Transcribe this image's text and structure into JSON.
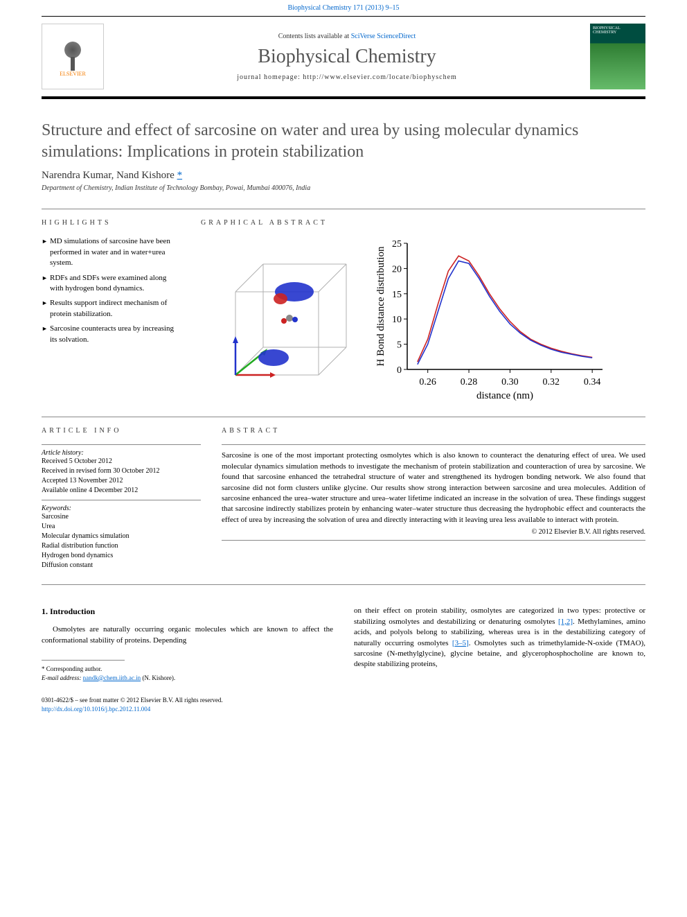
{
  "header": {
    "citation": "Biophysical Chemistry 171 (2013) 9–15",
    "contents_prefix": "Contents lists available at ",
    "contents_link": "SciVerse ScienceDirect",
    "journal_title": "Biophysical Chemistry",
    "homepage_prefix": "journal homepage: ",
    "homepage_url": "http://www.elsevier.com/locate/biophyschem",
    "elsevier_label": "ELSEVIER",
    "cover_label": "BIOPHYSICAL CHEMISTRY"
  },
  "article": {
    "title": "Structure and effect of sarcosine on water and urea by using molecular dynamics simulations: Implications in protein stabilization",
    "authors": "Narendra Kumar, Nand Kishore ",
    "corr_marker": "*",
    "affiliation": "Department of Chemistry, Indian Institute of Technology Bombay, Powai, Mumbai 400076, India"
  },
  "highlights": {
    "label": "HIGHLIGHTS",
    "items": [
      "MD simulations of sarcosine have been performed in water and in water+urea system.",
      "RDFs and SDFs were examined along with hydrogen bond dynamics.",
      "Results support indirect mechanism of protein stabilization.",
      "Sarcosine counteracts urea by increasing its solvation."
    ]
  },
  "graphical_abstract": {
    "label": "GRAPHICAL ABSTRACT",
    "cube": {
      "edge_color": "#b0b0b0",
      "axis_x_color": "#cc2222",
      "axis_y_color": "#22aa22",
      "axis_z_color": "#2233cc",
      "blob_colors": [
        "#2233cc",
        "#cc2222"
      ],
      "atom_colors": [
        "#888888",
        "#cc2222",
        "#2233cc"
      ]
    },
    "chart": {
      "type": "line",
      "xlabel": "distance (nm)",
      "ylabel": "H Bond distance distribution",
      "xlim": [
        0.25,
        0.345
      ],
      "ylim": [
        0,
        25
      ],
      "xticks": [
        0.26,
        0.28,
        0.3,
        0.32,
        0.34
      ],
      "yticks": [
        0,
        5,
        10,
        15,
        20,
        25
      ],
      "axis_color": "#000000",
      "background": "#ffffff",
      "label_fontsize": 15,
      "tick_fontsize": 14,
      "line_width": 1.6,
      "series": [
        {
          "color": "#cc2222",
          "points": [
            [
              0.255,
              1.5
            ],
            [
              0.26,
              6
            ],
            [
              0.265,
              13
            ],
            [
              0.27,
              19.5
            ],
            [
              0.275,
              22.5
            ],
            [
              0.28,
              21.5
            ],
            [
              0.285,
              18.5
            ],
            [
              0.29,
              15
            ],
            [
              0.295,
              12
            ],
            [
              0.3,
              9.5
            ],
            [
              0.305,
              7.5
            ],
            [
              0.31,
              6
            ],
            [
              0.315,
              5
            ],
            [
              0.32,
              4.2
            ],
            [
              0.325,
              3.6
            ],
            [
              0.33,
              3.1
            ],
            [
              0.335,
              2.7
            ],
            [
              0.34,
              2.4
            ]
          ]
        },
        {
          "color": "#2233cc",
          "points": [
            [
              0.255,
              1
            ],
            [
              0.26,
              5
            ],
            [
              0.265,
              11.5
            ],
            [
              0.27,
              18
            ],
            [
              0.275,
              21.5
            ],
            [
              0.28,
              21
            ],
            [
              0.285,
              18
            ],
            [
              0.29,
              14.5
            ],
            [
              0.295,
              11.5
            ],
            [
              0.3,
              9
            ],
            [
              0.305,
              7.2
            ],
            [
              0.31,
              5.8
            ],
            [
              0.315,
              4.8
            ],
            [
              0.32,
              4.0
            ],
            [
              0.325,
              3.4
            ],
            [
              0.33,
              3.0
            ],
            [
              0.335,
              2.6
            ],
            [
              0.34,
              2.3
            ]
          ]
        }
      ]
    }
  },
  "article_info": {
    "label": "ARTICLE INFO",
    "history_label": "Article history:",
    "history": [
      "Received 5 October 2012",
      "Received in revised form 30 October 2012",
      "Accepted 13 November 2012",
      "Available online 4 December 2012"
    ],
    "keywords_label": "Keywords:",
    "keywords": [
      "Sarcosine",
      "Urea",
      "Molecular dynamics simulation",
      "Radial distribution function",
      "Hydrogen bond dynamics",
      "Diffusion constant"
    ]
  },
  "abstract": {
    "label": "ABSTRACT",
    "text": "Sarcosine is one of the most important protecting osmolytes which is also known to counteract the denaturing effect of urea. We used molecular dynamics simulation methods to investigate the mechanism of protein stabilization and counteraction of urea by sarcosine. We found that sarcosine enhanced the tetrahedral structure of water and strengthened its hydrogen bonding network. We also found that sarcosine did not form clusters unlike glycine. Our results show strong interaction between sarcosine and urea molecules. Addition of sarcosine enhanced the urea–water structure and urea–water lifetime indicated an increase in the solvation of urea. These findings suggest that sarcosine indirectly stabilizes protein by enhancing water–water structure thus decreasing the hydrophobic effect and counteracts the effect of urea by increasing the solvation of urea and directly interacting with it leaving urea less available to interact with protein.",
    "copyright": "© 2012 Elsevier B.V. All rights reserved."
  },
  "intro": {
    "heading": "1. Introduction",
    "col1": "Osmolytes are naturally occurring organic molecules which are known to affect the conformational stability of proteins. Depending",
    "col2_pre": "on their effect on protein stability, osmolytes are categorized in two types: protective or stabilizing osmolytes and destabilizing or denaturing osmolytes ",
    "ref1": "[1,2]",
    "col2_mid": ". Methylamines, amino acids, and polyols belong to stabilizing, whereas urea is in the destabilizing category of naturally occurring osmolytes ",
    "ref2": "[3–5]",
    "col2_post": ". Osmolytes such as trimethylamide-N-oxide (TMAO), sarcosine (N-methylglycine), glycine betaine, and glycerophosphocholine are known to, despite stabilizing proteins,"
  },
  "footnote": {
    "corr_label": "* Corresponding author.",
    "email_label": "E-mail address: ",
    "email": "nandk@chem.iitb.ac.in",
    "email_suffix": " (N. Kishore)."
  },
  "footer": {
    "line1": "0301-4622/$ – see front matter © 2012 Elsevier B.V. All rights reserved.",
    "doi": "http://dx.doi.org/10.1016/j.bpc.2012.11.004"
  }
}
